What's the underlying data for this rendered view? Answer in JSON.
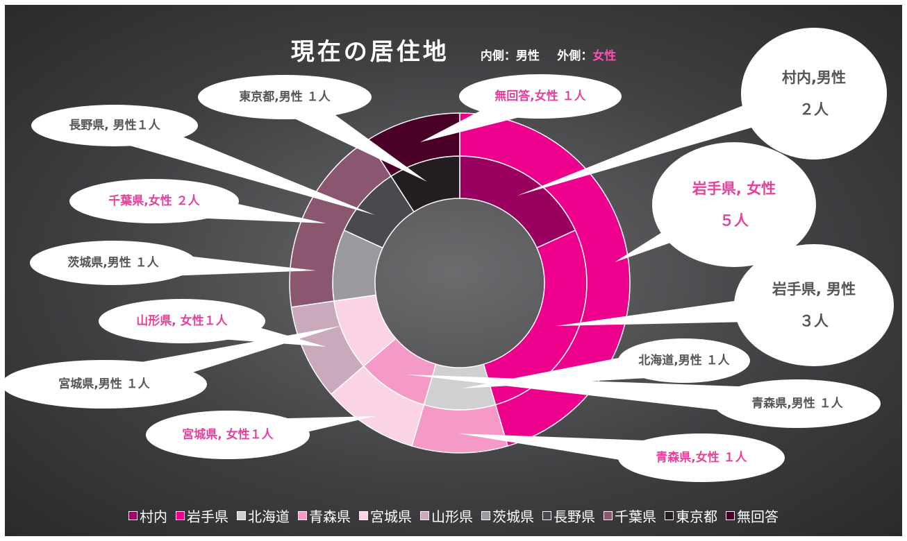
{
  "chart_data": {
    "type": "doughnut",
    "title": "現在の居住地",
    "ring_labels": [
      "内側：",
      "外側："
    ],
    "categories": [
      "村内",
      "岩手県",
      "北海道",
      "青森県",
      "宮城県",
      "山形県",
      "茨城県",
      "長野県",
      "千葉県",
      "東京都",
      "無回答"
    ],
    "colors": [
      "#9a0060",
      "#ec008c",
      "#d0d0d2",
      "#f59ac6",
      "#fad3e4",
      "#c9a9bb",
      "#9a9a9e",
      "#4a4a4e",
      "#8a5670",
      "#231c20",
      "#4a0026"
    ],
    "series": [
      {
        "name": "男性",
        "color": "#ffffff",
        "label_color": "#555555",
        "values": [
          2,
          3,
          1,
          1,
          1,
          0,
          1,
          1,
          0,
          1,
          0
        ],
        "value_labels": [
          "村内,男性\n２人",
          "岩手県, 男性\n３人",
          "北海道,男性 １人",
          "青森県,男性 １人",
          "宮城県,男性 １人",
          null,
          "茨城県,男性 １人",
          "長野県, 男性１人",
          null,
          "東京都,男性 １人",
          null
        ]
      },
      {
        "name": "女性",
        "color": "#ff4fae",
        "label_color": "#e8409a",
        "values": [
          0,
          5,
          0,
          1,
          1,
          1,
          0,
          0,
          2,
          0,
          1
        ],
        "value_labels": [
          null,
          "岩手県, 女性\n５人",
          null,
          "青森県,女性 １人",
          "宮城県, 女性１人",
          "山形県, 女性１人",
          null,
          null,
          "千葉県,女性 ２人",
          null,
          "無回答,女性 １人"
        ]
      }
    ]
  }
}
